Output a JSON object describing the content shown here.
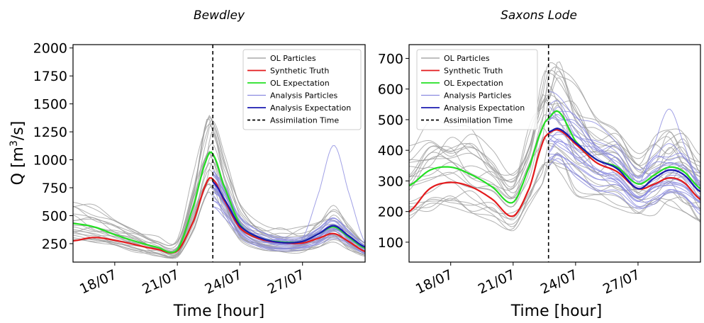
{
  "chart_data": [
    {
      "type": "line",
      "title": "Bewdley",
      "xlabel": "Time [hour]",
      "ylabel": "Q [m³/s]",
      "ylabel_base": "Q [m",
      "ylabel_sup": "3",
      "ylabel_end": "/s]",
      "xlim": [
        16,
        30
      ],
      "ylim": [
        85,
        2030
      ],
      "xticks": [
        18,
        21,
        24,
        27
      ],
      "xtick_labels": [
        "18/07",
        "21/07",
        "24/07",
        "27/07"
      ],
      "yticks": [
        250,
        500,
        750,
        1000,
        1250,
        1500,
        1750,
        2000
      ],
      "ytick_labels": [
        "250",
        "500",
        "750",
        "1000",
        "1250",
        "1500",
        "1750",
        "2000"
      ],
      "assimilation_time": 22.7,
      "x": [
        16,
        17,
        18,
        19,
        20,
        21,
        21.8,
        22.4,
        22.7,
        23.2,
        24,
        25,
        26,
        27,
        27.8,
        28.5,
        29.2,
        30
      ],
      "series": [
        {
          "name": "Synthetic Truth",
          "color": "#e31a1c",
          "values": [
            275,
            305,
            280,
            240,
            200,
            185,
            460,
            790,
            825,
            650,
            390,
            290,
            260,
            255,
            300,
            340,
            270,
            180
          ]
        },
        {
          "name": "OL Expectation",
          "color": "#22e022",
          "values": [
            430,
            400,
            330,
            270,
            220,
            195,
            600,
            1000,
            1050,
            780,
            420,
            300,
            265,
            270,
            340,
            400,
            310,
            210
          ]
        },
        {
          "name": "Analysis Expectation",
          "color": "#1a1ab0",
          "values": [
            null,
            null,
            null,
            null,
            null,
            null,
            null,
            null,
            800,
            660,
            410,
            300,
            260,
            270,
            340,
            410,
            320,
            220
          ]
        }
      ],
      "particle_summary": {
        "ol_particles": {
          "name": "OL Particles",
          "color": "#999999",
          "count": 22,
          "x_range": [
            16,
            30
          ]
        },
        "analysis_particles": {
          "name": "Analysis Particles",
          "color": "#8a8ae0",
          "count": 20,
          "x_range": [
            22.7,
            30
          ],
          "outlier_peak": 1130
        }
      },
      "legend": {
        "placement": "top-right",
        "entries": [
          {
            "label": "OL Particles",
            "color": "#999999",
            "style": "solid"
          },
          {
            "label": "Synthetic Truth",
            "color": "#e31a1c",
            "style": "solid"
          },
          {
            "label": " OL Expectation",
            "color": "#22e022",
            "style": "solid"
          },
          {
            "label": "Analysis Particles",
            "color": "#8a8ae0",
            "style": "solid"
          },
          {
            "label": " Analysis Expectation",
            "color": "#1a1ab0",
            "style": "solid"
          },
          {
            "label": "Assimilation Time",
            "color": "#000000",
            "style": "dashed"
          }
        ]
      }
    },
    {
      "type": "line",
      "title": "Saxons Lode",
      "xlabel": "Time [hour]",
      "ylabel": "",
      "xlim": [
        16,
        30
      ],
      "ylim": [
        35,
        745
      ],
      "xticks": [
        18,
        21,
        24,
        27
      ],
      "xtick_labels": [
        "18/07",
        "21/07",
        "24/07",
        "27/07"
      ],
      "yticks": [
        100,
        200,
        300,
        400,
        500,
        600,
        700
      ],
      "ytick_labels": [
        "100",
        "200",
        "300",
        "400",
        "500",
        "600",
        "700"
      ],
      "assimilation_time": 22.7,
      "x": [
        16,
        17,
        18,
        19,
        20,
        21,
        21.8,
        22.4,
        22.7,
        23.2,
        24,
        25,
        26,
        27,
        27.8,
        28.5,
        29.2,
        30
      ],
      "series": [
        {
          "name": "Synthetic Truth",
          "color": "#e31a1c",
          "values": [
            200,
            275,
            295,
            280,
            240,
            185,
            280,
            420,
            455,
            465,
            420,
            360,
            330,
            275,
            290,
            310,
            295,
            240
          ]
        },
        {
          "name": "OL Expectation",
          "color": "#22e022",
          "values": [
            285,
            335,
            345,
            320,
            280,
            230,
            350,
            470,
            505,
            525,
            430,
            370,
            345,
            290,
            320,
            345,
            330,
            275
          ]
        },
        {
          "name": "Analysis Expectation",
          "color": "#1a1ab0",
          "values": [
            null,
            null,
            null,
            null,
            null,
            null,
            null,
            null,
            460,
            470,
            425,
            370,
            340,
            275,
            310,
            335,
            320,
            265
          ]
        }
      ],
      "particle_summary": {
        "ol_particles": {
          "name": "OL Particles",
          "color": "#999999",
          "count": 22,
          "x_range": [
            16,
            30
          ]
        },
        "analysis_particles": {
          "name": "Analysis Particles",
          "color": "#8a8ae0",
          "count": 20,
          "x_range": [
            22.7,
            30
          ],
          "outlier_peak": 535
        }
      },
      "legend": {
        "placement": "top-right",
        "entries": [
          {
            "label": "OL Particles",
            "color": "#999999",
            "style": "solid"
          },
          {
            "label": "Synthetic Truth",
            "color": "#e31a1c",
            "style": "solid"
          },
          {
            "label": " OL Expectation",
            "color": "#22e022",
            "style": "solid"
          },
          {
            "label": "Analysis Particles",
            "color": "#8a8ae0",
            "style": "solid"
          },
          {
            "label": " Analysis Expectation",
            "color": "#1a1ab0",
            "style": "solid"
          },
          {
            "label": "Assimilation Time",
            "color": "#000000",
            "style": "dashed"
          }
        ]
      }
    }
  ]
}
